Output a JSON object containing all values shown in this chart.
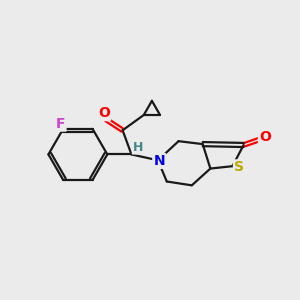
{
  "background_color": "#ebebeb",
  "line_color": "#1a1a1a",
  "line_width": 1.6,
  "atom_colors": {
    "O": "#ff0000",
    "F": "#cc44cc",
    "N": "#0000ee",
    "S": "#bbaa00",
    "H": "#448888",
    "C": "#1a1a1a"
  },
  "font_size": 10,
  "fig_size": [
    3.0,
    3.0
  ],
  "dpi": 100
}
